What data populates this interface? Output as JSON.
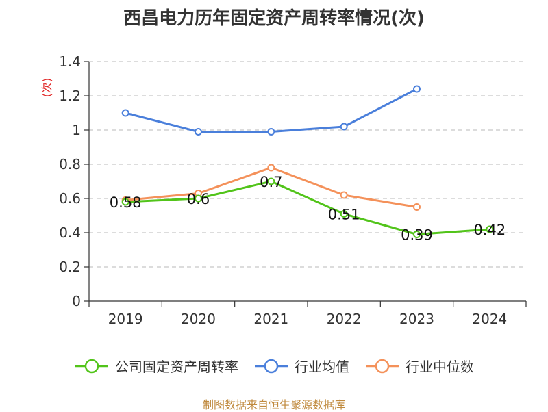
{
  "chart_data": {
    "type": "line",
    "title": "西昌电力历年固定资产周转率情况(次)",
    "ylabel": "(次)",
    "xlabel": "",
    "categories": [
      "2019",
      "2020",
      "2021",
      "2022",
      "2023",
      "2024"
    ],
    "ylim": [
      0,
      1.4
    ],
    "yticks": [
      0,
      0.2,
      0.4,
      0.6,
      0.8,
      1,
      1.2,
      1.4
    ],
    "ytick_labels": [
      "0",
      "0.2",
      "0.4",
      "0.6",
      "0.8",
      "1",
      "1.2",
      "1.4"
    ],
    "grid": true,
    "legend_position": "bottom",
    "series": [
      {
        "name": "公司固定资产周转率",
        "color": "#52c41a",
        "values": [
          0.58,
          0.6,
          0.7,
          0.51,
          0.39,
          0.42
        ],
        "labels": [
          "0.58",
          "0.6",
          "0.7",
          "0.51",
          "0.39",
          "0.42"
        ]
      },
      {
        "name": "行业均值",
        "color": "#4a7fdb",
        "values": [
          1.1,
          0.99,
          0.99,
          1.02,
          1.24,
          null
        ]
      },
      {
        "name": "行业中位数",
        "color": "#f4915a",
        "values": [
          0.59,
          0.63,
          0.78,
          0.62,
          0.55,
          null
        ]
      }
    ],
    "source": "制图数据来自恒生聚源数据库"
  }
}
